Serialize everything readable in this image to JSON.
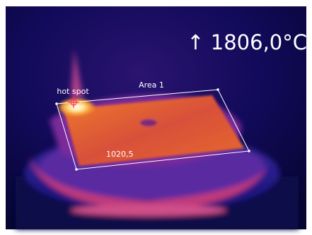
{
  "max_temperature": "↑ 1806,0°C",
  "area": {
    "label": "Area 1",
    "value": "1020,5"
  },
  "hot_spot": {
    "label": "hot spot"
  }
}
